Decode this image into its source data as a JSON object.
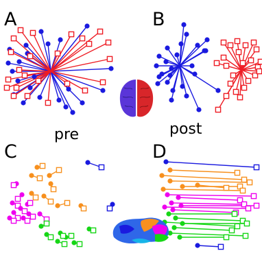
{
  "panels": {
    "A": {
      "letter": "A"
    },
    "B": {
      "letter": "B"
    },
    "C": {
      "letter": "C"
    },
    "D": {
      "letter": "D"
    }
  },
  "labels": {
    "pre": "pre",
    "post": "post"
  },
  "colors": {
    "blue": "#1a1adf",
    "red": "#ee1c24",
    "orange": "#f7901e",
    "magenta": "#ee00ee",
    "green": "#16d616",
    "brain_left": "#5a35d8",
    "brain_right": "#d8262a"
  },
  "icons": {
    "brain_top_view": "brain-top-view-icon",
    "brain_side_view": "brain-side-view-icon"
  }
}
